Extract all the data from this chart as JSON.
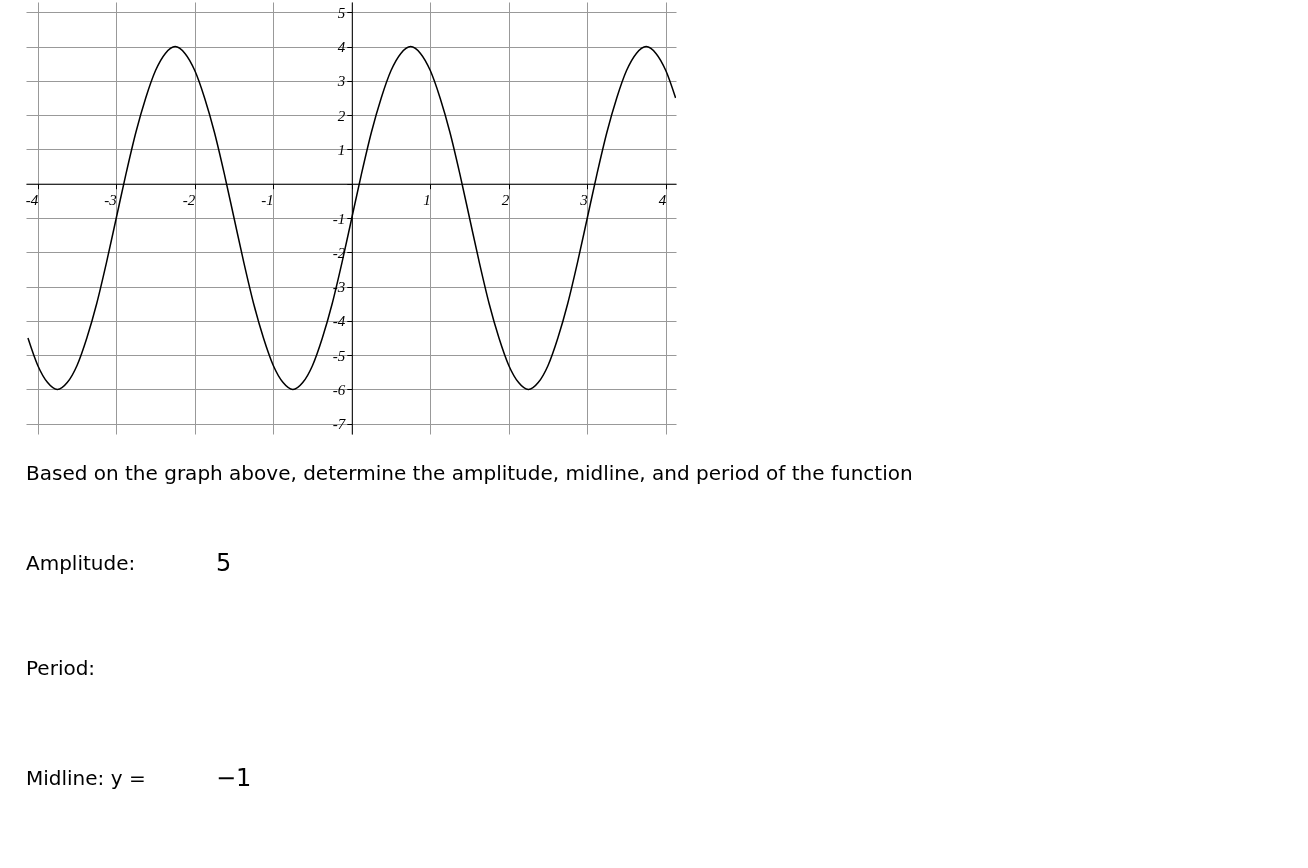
{
  "chart_data": {
    "type": "line",
    "x": [
      -4.125,
      -4.0,
      -3.875,
      -3.75,
      -3.625,
      -3.5,
      -3.375,
      -3.25,
      -3.125,
      -3.0,
      -2.875,
      -2.75,
      -2.625,
      -2.5,
      -2.375,
      -2.25,
      -2.125,
      -2.0,
      -1.875,
      -1.75,
      -1.625,
      -1.5,
      -1.375,
      -1.25,
      -1.125,
      -1.0,
      -0.875,
      -0.75,
      -0.625,
      -0.5,
      -0.375,
      -0.25,
      -0.125,
      0.0,
      0.125,
      0.25,
      0.375,
      0.5,
      0.625,
      0.75,
      0.875,
      1.0,
      1.125,
      1.25,
      1.375,
      1.5,
      1.625,
      1.75,
      1.875,
      2.0,
      2.125,
      2.25,
      2.375,
      2.5,
      2.625,
      2.75,
      2.875,
      3.0,
      3.125,
      3.25,
      3.375,
      3.5,
      3.625,
      3.75,
      3.875,
      4.0,
      4.125
    ],
    "series": [
      {
        "color": "#000000",
        "values": [
          -4.5,
          -5.3,
          -5.8,
          -6,
          -5.8,
          -5.3,
          -4.5,
          -3.5,
          -2.3,
          -1,
          0.3,
          1.5,
          2.5,
          3.3,
          3.8,
          4,
          3.8,
          3.3,
          2.5,
          1.5,
          0.3,
          -1,
          -2.3,
          -3.5,
          -4.5,
          -5.3,
          -5.8,
          -6,
          -5.8,
          -5.3,
          -4.5,
          -3.5,
          -2.3,
          -1,
          0.3,
          1.5,
          2.5,
          3.3,
          3.8,
          4,
          3.8,
          3.3,
          2.5,
          1.5,
          0.3,
          -1,
          -2.3,
          -3.5,
          -4.5,
          -5.3,
          -5.8,
          -6,
          -5.8,
          -5.3,
          -4.5,
          -3.5,
          -2.3,
          -1,
          0.3,
          1.5,
          2.5,
          3.3,
          3.8,
          4,
          3.8,
          3.3,
          2.5
        ]
      }
    ],
    "xlim": [
      -4.15,
      4.13
    ],
    "ylim": [
      -7.3,
      5.3
    ],
    "xticks": [
      -4,
      -3,
      -2,
      -1,
      {
        "value": 0,
        "label": null
      },
      1,
      2,
      3,
      4
    ],
    "yticks": [
      -7,
      -6,
      -5,
      -4,
      -3,
      -2,
      -1,
      {
        "value": 0,
        "label": null
      },
      1,
      2,
      3,
      4,
      5
    ],
    "grid": true,
    "marker": "none",
    "line_style": "solid",
    "annotations": [
      "Based on the graph above, determine the amplitude, midline, and period of the function",
      "Amplitude:",
      "5",
      "Period:",
      "Midline: y =",
      "−1"
    ]
  }
}
